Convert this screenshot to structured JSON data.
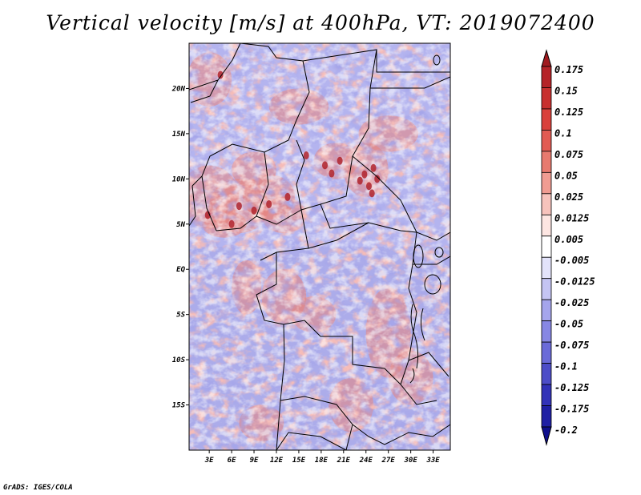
{
  "title": "Vertical velocity [m/s] at 400hPa, VT: 2019072400",
  "footer": "GrADS: IGES/COLA",
  "chart_data": {
    "type": "heatmap",
    "title": "Vertical velocity [m/s] at 400hPa, VT: 2019072400",
    "variable": "Vertical velocity",
    "units": "m/s",
    "level": "400hPa",
    "valid_time": "2019072400",
    "x_ticks": [
      "3E",
      "6E",
      "9E",
      "12E",
      "15E",
      "18E",
      "21E",
      "24E",
      "27E",
      "30E",
      "33E"
    ],
    "x_tick_values": [
      3,
      6,
      9,
      12,
      15,
      18,
      21,
      24,
      27,
      30,
      33
    ],
    "y_ticks": [
      "20N",
      "15N",
      "10N",
      "5N",
      "EQ",
      "5S",
      "10S",
      "15S"
    ],
    "y_tick_values": [
      20,
      15,
      10,
      5,
      0,
      -5,
      -10,
      -15
    ],
    "xlim": [
      0.3,
      35.3
    ],
    "ylim": [
      -20,
      25
    ],
    "colorbar": {
      "levels": [
        "0.175",
        "0.15",
        "0.125",
        "0.1",
        "0.075",
        "0.05",
        "0.025",
        "0.0125",
        "0.005",
        "-0.005",
        "-0.0125",
        "-0.025",
        "-0.05",
        "-0.075",
        "-0.1",
        "-0.125",
        "-0.175",
        "-0.2"
      ],
      "colors": [
        "#a01a1f",
        "#b52328",
        "#c8302f",
        "#d9403b",
        "#e25b53",
        "#e87a6f",
        "#f09c92",
        "#f7c3bc",
        "#fde6e2",
        "#ffffff",
        "#e3e3fa",
        "#c4c4f3",
        "#a5a5ec",
        "#8787e4",
        "#6a6ad8",
        "#4d4dc8",
        "#3232b8",
        "#1f1fa4",
        "#0f0f8c"
      ]
    },
    "domain_colors": {
      "north_background": "#b4b4ef",
      "south_background": "#acacea",
      "positive": "#e9837a",
      "strong_positive": "#b0232b"
    }
  }
}
